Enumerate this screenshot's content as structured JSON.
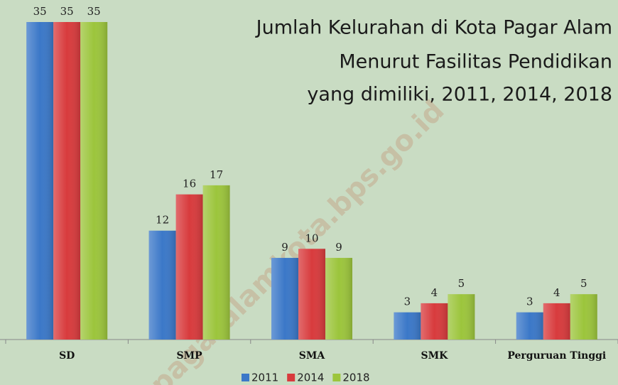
{
  "chart_data": {
    "type": "bar",
    "title": [
      "Jumlah Kelurahan di Kota Pagar Alam",
      "Menurut Fasilitas Pendidikan",
      "yang dimiliki, 2011, 2014, 2018"
    ],
    "watermark": "pagaralamkota.bps.go.id",
    "categories": [
      "SD",
      "SMP",
      "SMA",
      "SMK",
      "Perguruan Tinggi"
    ],
    "series": [
      {
        "name": "2011",
        "color": "#3b78c8",
        "values": [
          35,
          12,
          9,
          3,
          3
        ]
      },
      {
        "name": "2014",
        "color": "#d83b3d",
        "values": [
          35,
          16,
          10,
          4,
          4
        ]
      },
      {
        "name": "2018",
        "color": "#9cc53c",
        "values": [
          35,
          17,
          9,
          5,
          5
        ]
      }
    ],
    "ylim": [
      0,
      35
    ],
    "legend": "bottom"
  }
}
